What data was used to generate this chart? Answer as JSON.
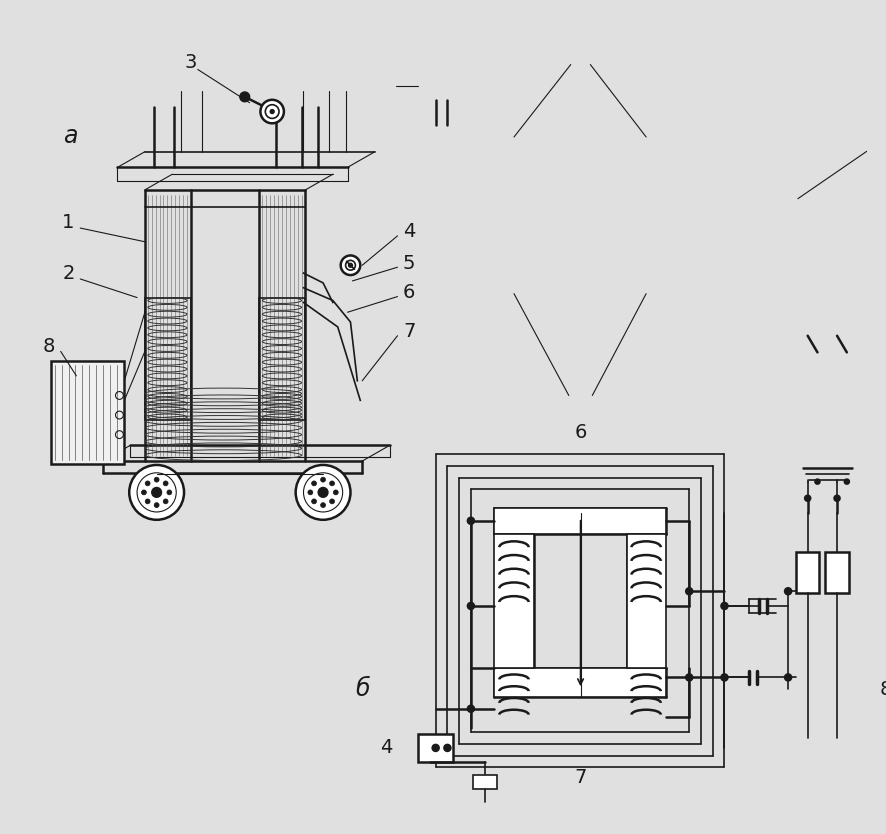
{
  "bg_color": "#e0e0e0",
  "line_color": "#1a1a1a",
  "label_a": "a",
  "label_b": "б",
  "font_size_labels": 13,
  "fig_w": 8.86,
  "fig_h": 8.34,
  "dpi": 100
}
